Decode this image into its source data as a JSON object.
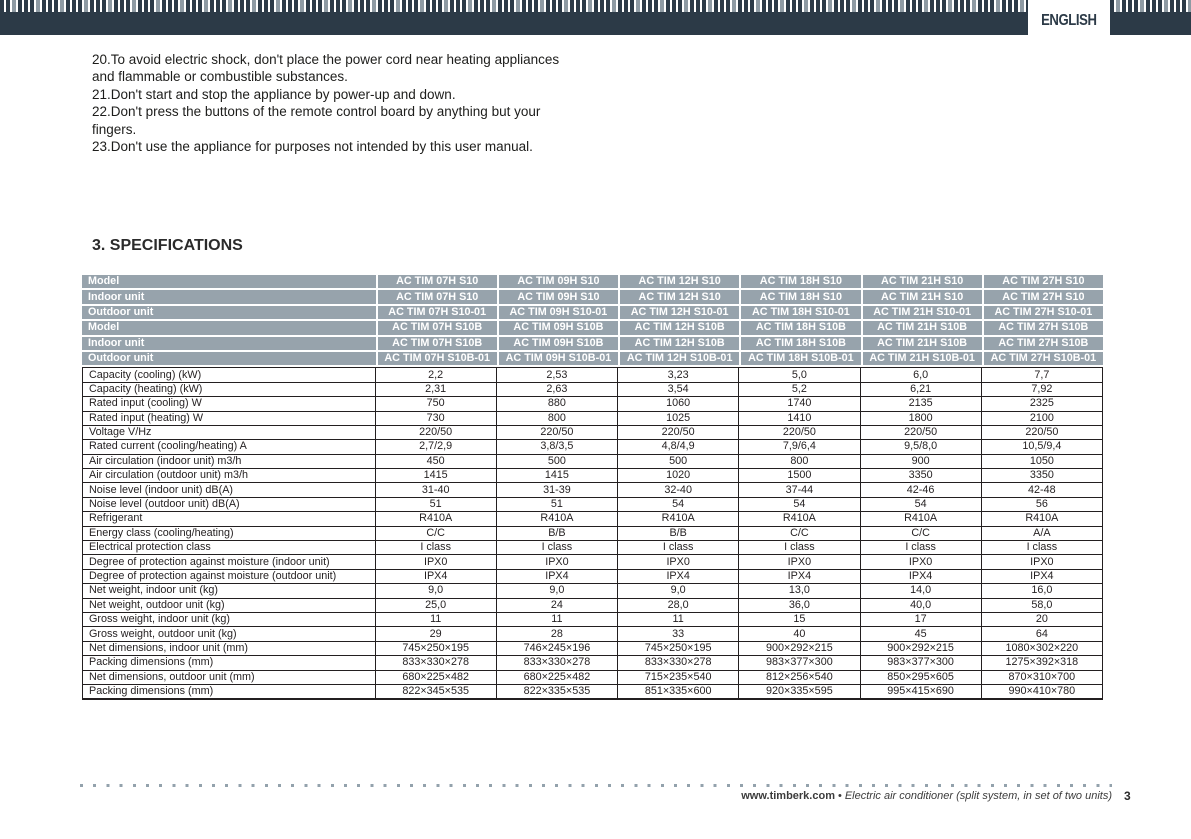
{
  "language_tab": "ENGLISH",
  "instructions": [
    "20.To avoid electric shock, don't place the power cord near heating appliances and flammable or combustible substances.",
    "21.Don't start and stop the appliance by power-up and down.",
    "22.Don't press the buttons of the remote control board by anything but your fingers.",
    "23.Don't use the appliance for purposes not intended by this user manual."
  ],
  "section_title": "3. SPECIFICATIONS",
  "spec_table": {
    "header_rows": [
      {
        "label": "Model",
        "values": [
          "AC TIM 07H S10",
          "AC TIM 09H S10",
          "AC TIM 12H S10",
          "AC TIM 18H S10",
          "AC TIM 21H S10",
          "AC TIM 27H S10"
        ]
      },
      {
        "label": "Indoor unit",
        "values": [
          "AC TIM 07H S10",
          "AC TIM 09H S10",
          "AC TIM 12H S10",
          "AC TIM 18H S10",
          "AC TIM 21H S10",
          "AC TIM 27H S10"
        ]
      },
      {
        "label": "Outdoor unit",
        "values": [
          "AC TIM 07H S10-01",
          "AC TIM 09H S10-01",
          "AC TIM 12H S10-01",
          "AC TIM 18H S10-01",
          "AC TIM 21H S10-01",
          "AC TIM 27H S10-01"
        ]
      },
      {
        "label": "Model",
        "values": [
          "AC TIM 07H S10B",
          "AC TIM 09H S10B",
          "AC TIM 12H S10B",
          "AC TIM 18H S10B",
          "AC TIM 21H S10B",
          "AC TIM 27H S10B"
        ]
      },
      {
        "label": "Indoor unit",
        "values": [
          "AC TIM 07H S10B",
          "AC TIM 09H S10B",
          "AC TIM 12H S10B",
          "AC TIM 18H S10B",
          "AC TIM 21H S10B",
          "AC TIM 27H S10B"
        ]
      },
      {
        "label": "Outdoor unit",
        "values": [
          "AC TIM 07H S10B-01",
          "AC TIM 09H S10B-01",
          "AC TIM 12H S10B-01",
          "AC TIM 18H S10B-01",
          "AC TIM 21H S10B-01",
          "AC TIM 27H S10B-01"
        ]
      }
    ],
    "rows": [
      {
        "label": "Capacity (cooling)  (kW)",
        "values": [
          "2,2",
          "2,53",
          "3,23",
          "5,0",
          "6,0",
          "7,7"
        ]
      },
      {
        "label": "Capacity (heating)   (kW)",
        "values": [
          "2,31",
          "2,63",
          "3,54",
          "5,2",
          "6,21",
          "7,92"
        ]
      },
      {
        "label": "Rated input (cooling) W",
        "values": [
          "750",
          "880",
          "1060",
          "1740",
          "2135",
          "2325"
        ]
      },
      {
        "label": "Rated input (heating) W",
        "values": [
          "730",
          "800",
          "1025",
          "1410",
          "1800",
          "2100"
        ]
      },
      {
        "label": "Voltage V/Hz",
        "values": [
          "220/50",
          "220/50",
          "220/50",
          "220/50",
          "220/50",
          "220/50"
        ]
      },
      {
        "label": "Rated current (cooling/heating) A",
        "values": [
          "2,7/2,9",
          "3,8/3,5",
          "4,8/4,9",
          "7,9/6,4",
          "9,5/8,0",
          "10,5/9,4"
        ]
      },
      {
        "label": "Air circulation (indoor unit) m3/h",
        "values": [
          "450",
          "500",
          "500",
          "800",
          "900",
          "1050"
        ]
      },
      {
        "label": "Air circulation (outdoor unit) m3/h",
        "values": [
          "1415",
          "1415",
          "1020",
          "1500",
          "3350",
          "3350"
        ]
      },
      {
        "label": "Noise level (indoor unit) dB(A)",
        "values": [
          "31-40",
          "31-39",
          "32-40",
          "37-44",
          "42-46",
          "42-48"
        ]
      },
      {
        "label": "Noise level (outdoor unit) dB(A)",
        "values": [
          "51",
          "51",
          "54",
          "54",
          "54",
          "56"
        ]
      },
      {
        "label": "Refrigerant",
        "values": [
          "R410A",
          "R410A",
          "R410A",
          "R410A",
          "R410A",
          "R410A"
        ]
      },
      {
        "label": "Energy class (cooling/heating)",
        "values": [
          "C/C",
          "B/B",
          "B/B",
          "C/C",
          "C/C",
          "A/A"
        ]
      },
      {
        "label": "Electrical protection class",
        "values": [
          "I class",
          "I class",
          "I class",
          "I class",
          "I class",
          "I class"
        ]
      },
      {
        "label": "Degree of protection against moisture (indoor unit)",
        "values": [
          "IPX0",
          "IPX0",
          "IPX0",
          "IPX0",
          "IPX0",
          "IPX0"
        ]
      },
      {
        "label": "Degree of protection against moisture (outdoor unit)",
        "values": [
          "IPX4",
          "IPX4",
          "IPX4",
          "IPX4",
          "IPX4",
          "IPX4"
        ]
      },
      {
        "label": "Net weight, indoor unit (kg)",
        "values": [
          "9,0",
          "9,0",
          "9,0",
          "13,0",
          "14,0",
          "16,0"
        ]
      },
      {
        "label": "Net weight, outdoor unit (kg)",
        "values": [
          "25,0",
          "24",
          "28,0",
          "36,0",
          "40,0",
          "58,0"
        ]
      },
      {
        "label": "Gross weight, indoor unit (kg)",
        "values": [
          "11",
          "11",
          "11",
          "15",
          "17",
          "20"
        ]
      },
      {
        "label": "Gross weight, outdoor unit (kg)",
        "values": [
          "29",
          "28",
          "33",
          "40",
          "45",
          "64"
        ]
      },
      {
        "label": "Net dimensions, indoor unit (mm)",
        "values": [
          "745×250×195",
          "746×245×196",
          "745×250×195",
          "900×292×215",
          "900×292×215",
          "1080×302×220"
        ]
      },
      {
        "label": "Packing dimensions (mm)",
        "values": [
          "833×330×278",
          "833×330×278",
          "833×330×278",
          "983×377×300",
          "983×377×300",
          "1275×392×318"
        ]
      },
      {
        "label": "Net dimensions, outdoor unit (mm)",
        "values": [
          "680×225×482",
          "680×225×482",
          "715×235×540",
          "812×256×540",
          "850×295×605",
          "870×310×700"
        ]
      },
      {
        "label": "Packing dimensions (mm)",
        "values": [
          "822×345×535",
          "822×335×535",
          "851×335×600",
          "920×335×595",
          "995×415×690",
          "990×410×780"
        ]
      }
    ]
  },
  "footer": {
    "site": "www.timberk.com",
    "separator": "•",
    "description": "Electric air conditioner (split system, in set of two units)",
    "page_number": "3"
  },
  "colors": {
    "bar_navy": "#2c3a47",
    "stripe_gray": "#8e9aa3",
    "table_header_gray": "#97a3ac",
    "body_text": "#231f20",
    "footer_dots": "#93a2ac"
  }
}
